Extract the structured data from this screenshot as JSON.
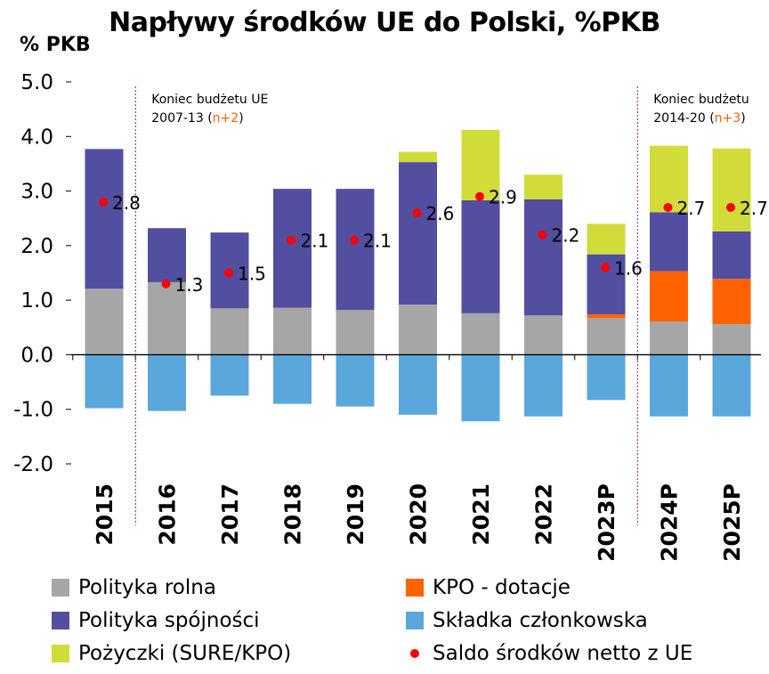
{
  "title": "Napływy środków UE do Polski, %PKB",
  "y_unit_label": "% PKB",
  "chart_data": {
    "type": "bar",
    "stacked": true,
    "categories": [
      "2015",
      "2016",
      "2017",
      "2018",
      "2019",
      "2020",
      "2021",
      "2022",
      "2023P",
      "2024P",
      "2025P"
    ],
    "ylim": [
      -2.0,
      5.0
    ],
    "yticks": [
      "5.0",
      "4.0",
      "3.0",
      "2.0",
      "1.0",
      "0.0",
      "-1.0",
      "-2.0"
    ],
    "ytick_values": [
      5,
      4,
      3,
      2,
      1,
      0,
      -1,
      -2
    ],
    "grid": false,
    "legend_position": "bottom",
    "series": [
      {
        "name": "Polityka rolna",
        "color": "#a6a6a6",
        "values": [
          1.21,
          1.33,
          0.85,
          0.86,
          0.82,
          0.92,
          0.76,
          0.72,
          0.67,
          0.61,
          0.56
        ]
      },
      {
        "name": "KPO - dotacje",
        "color": "#ff6200",
        "values": [
          0,
          0,
          0,
          0,
          0,
          0,
          0,
          0,
          0.07,
          0.92,
          0.83
        ]
      },
      {
        "name": "Polityka spójności",
        "color": "#524ea0",
        "values": [
          2.56,
          0.99,
          1.39,
          2.18,
          2.22,
          2.61,
          2.07,
          2.13,
          1.1,
          1.08,
          0.87
        ]
      },
      {
        "name": "Pożyczki (SURE/KPO)",
        "color": "#d1db3a",
        "values": [
          0,
          0,
          0,
          0,
          0,
          0.19,
          1.29,
          0.45,
          0.56,
          1.22,
          1.52
        ]
      },
      {
        "name": "Składka członkowska",
        "color": "#5aa7dc",
        "values": [
          -0.98,
          -1.03,
          -0.75,
          -0.9,
          -0.95,
          -1.1,
          -1.22,
          -1.13,
          -0.83,
          -1.13,
          -1.13
        ]
      }
    ],
    "net_balance": {
      "name": "Saldo środków netto z UE",
      "color": "#ff0000",
      "values": [
        2.8,
        1.3,
        1.5,
        2.1,
        2.1,
        2.6,
        2.9,
        2.2,
        1.6,
        2.7,
        2.7
      ],
      "labels": [
        "2.8",
        "1.3",
        "1.5",
        "2.1",
        "2.1",
        "2.6",
        "2.9",
        "2.2",
        "1.6",
        "2.7",
        "2.7"
      ]
    },
    "annotations": [
      {
        "text_line1": "Koniec budżetu UE",
        "text_line2_main": "2007-13 (",
        "text_line2_highlight": "n+2",
        "text_line2_end": ")",
        "after_category": "2015"
      },
      {
        "text_line1": "Koniec budżetu",
        "text_line2_main": "2014-20 (",
        "text_line2_highlight": "n+3",
        "text_line2_end": ")",
        "after_category": "2023P"
      }
    ],
    "highlight_color": "#ff6200"
  },
  "legend": [
    {
      "label": "Polityka rolna",
      "color": "#a6a6a6",
      "kind": "box"
    },
    {
      "label": "KPO - dotacje",
      "color": "#ff6200",
      "kind": "box"
    },
    {
      "label": "Polityka spójności",
      "color": "#524ea0",
      "kind": "box"
    },
    {
      "label": "Składka członkowska",
      "color": "#5aa7dc",
      "kind": "box"
    },
    {
      "label": "Pożyczki (SURE/KPO)",
      "color": "#d1db3a",
      "kind": "box"
    },
    {
      "label": "Saldo środków netto z UE",
      "color": "#ff0000",
      "kind": "dot"
    }
  ]
}
